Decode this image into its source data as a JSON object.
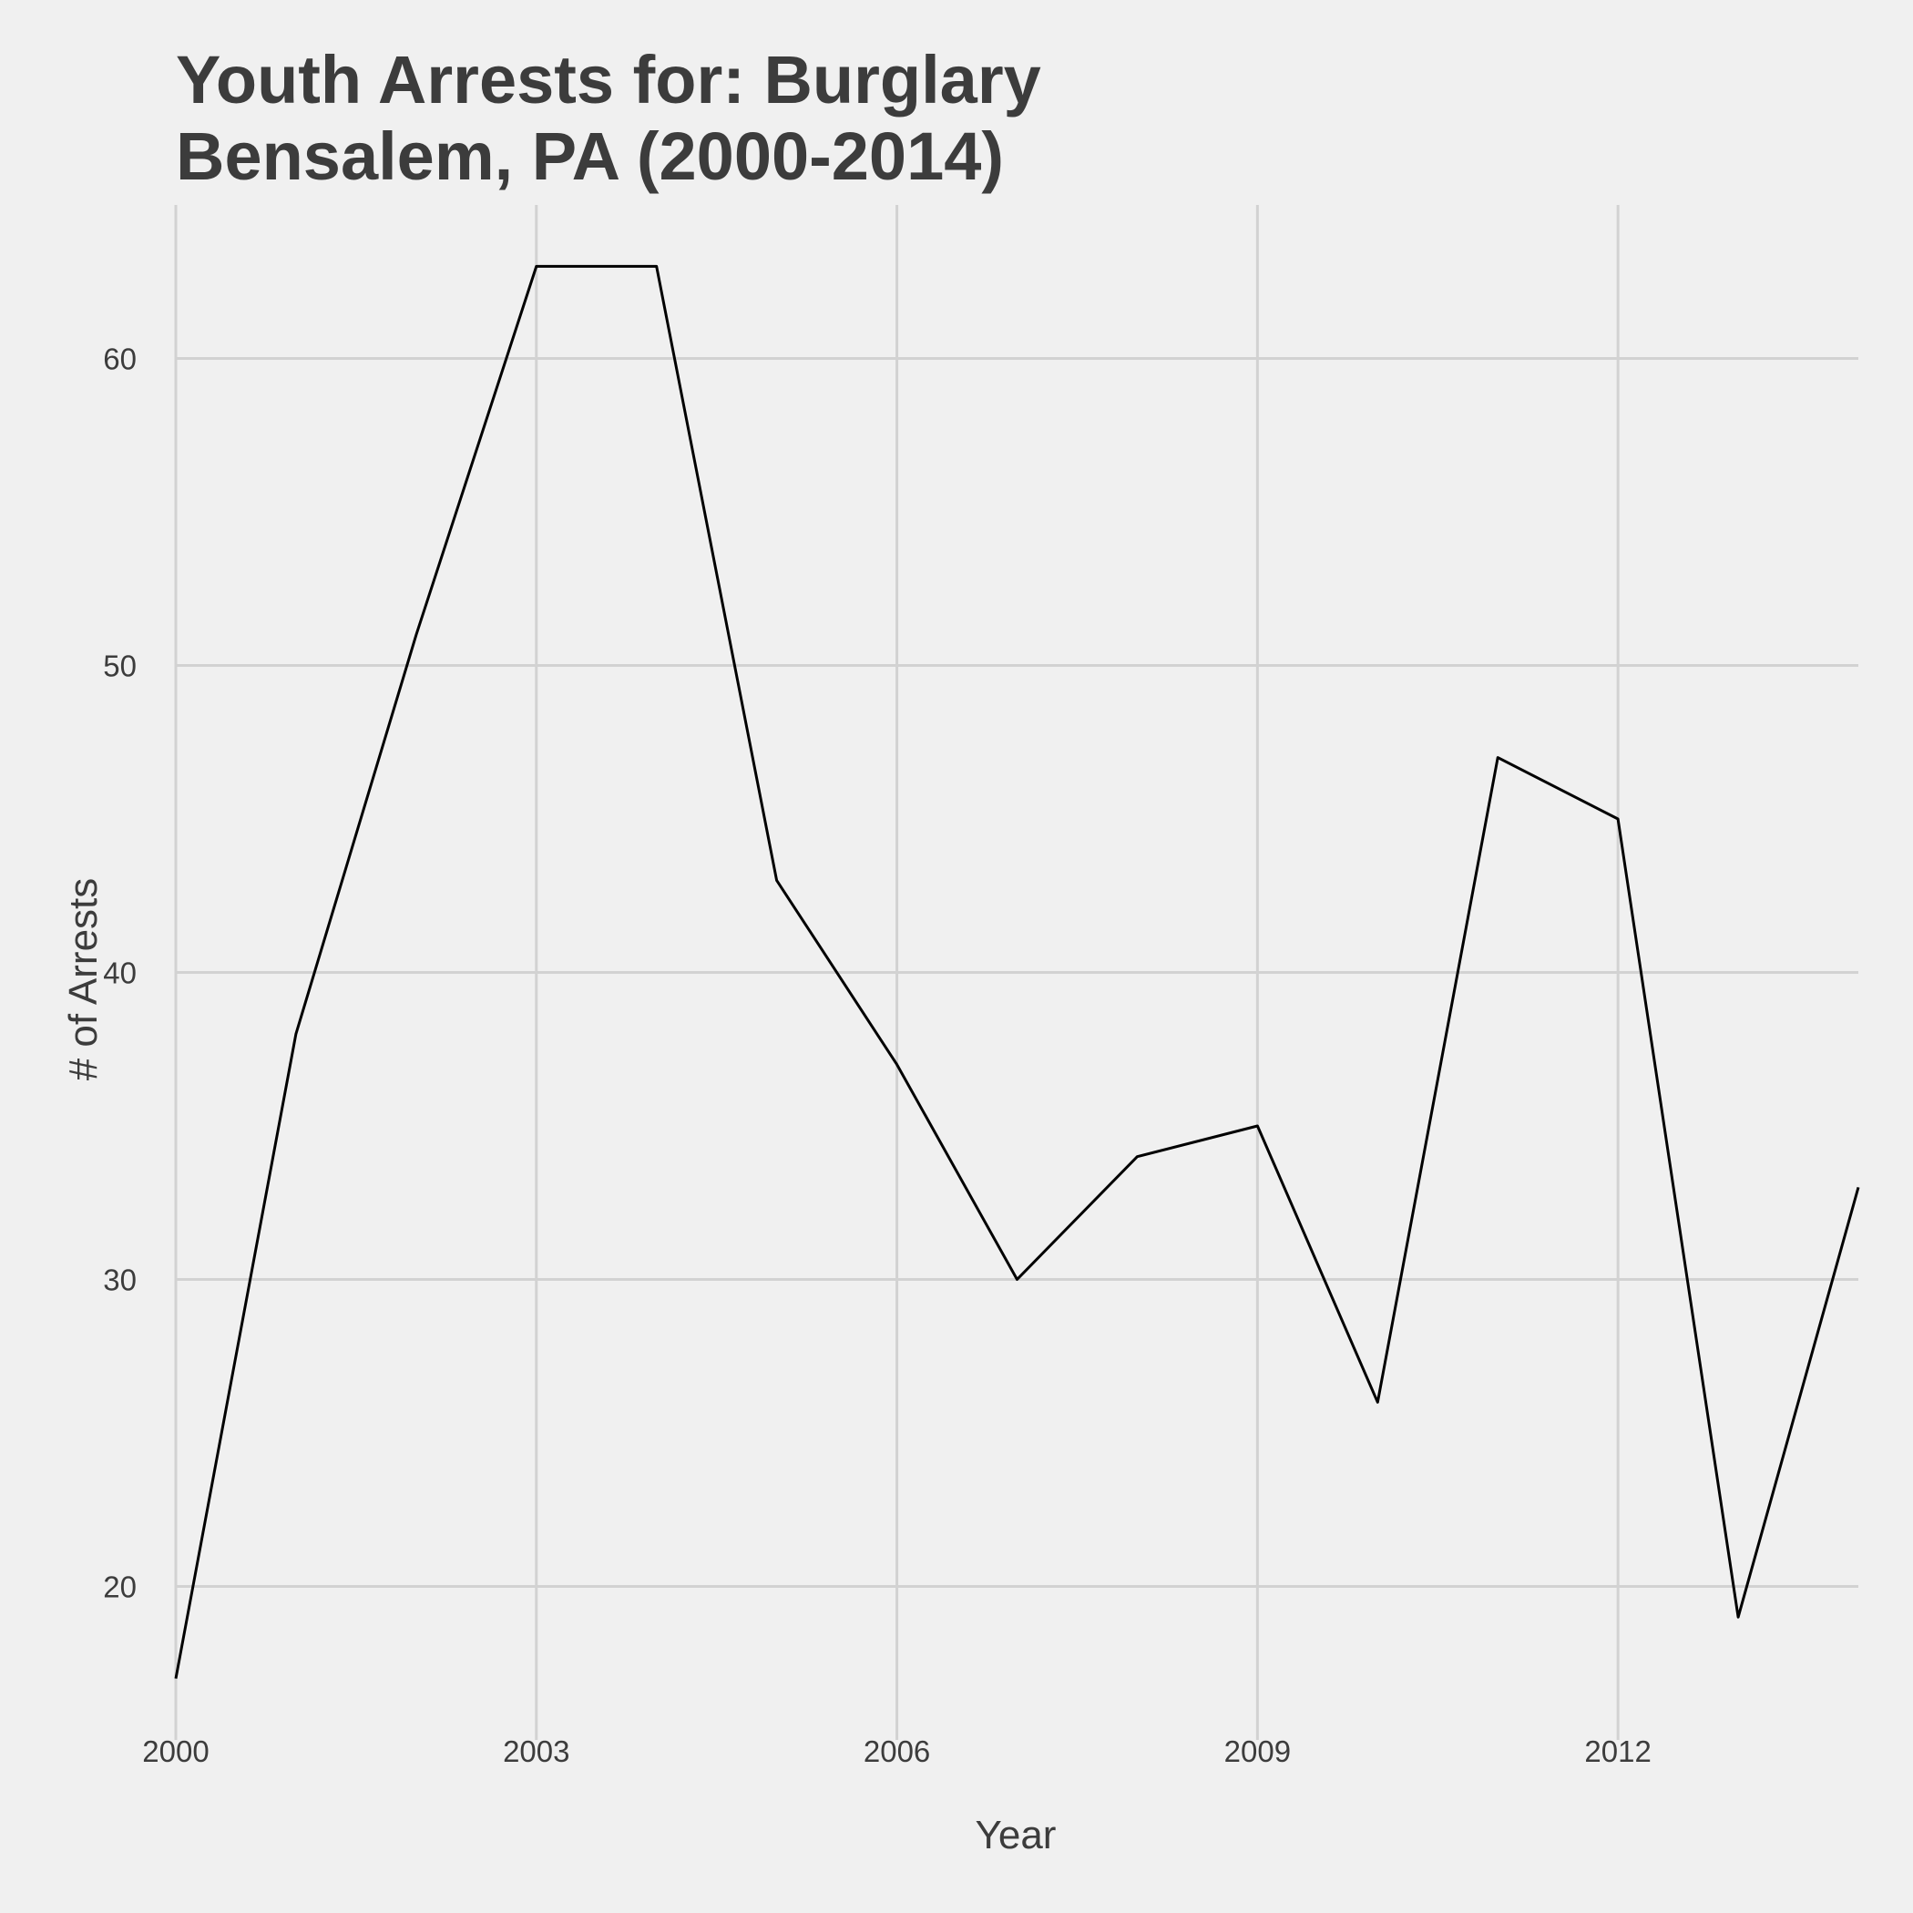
{
  "chart_data": {
    "type": "line",
    "title": [
      "Youth Arrests for: Burglary",
      "Bensalem, PA (2000-2014)"
    ],
    "xlabel": "Year",
    "ylabel": "# of Arrests",
    "x": [
      2000,
      2001,
      2002,
      2003,
      2004,
      2005,
      2006,
      2007,
      2008,
      2009,
      2010,
      2011,
      2012,
      2013,
      2014
    ],
    "series": [
      {
        "values": [
          17,
          38,
          51,
          63,
          63,
          43,
          37,
          30,
          34,
          35,
          26,
          47,
          45,
          19,
          33
        ]
      }
    ],
    "xlim": [
      2000,
      2014
    ],
    "ylim": [
      15,
      65
    ],
    "xticks": [
      2000,
      2003,
      2006,
      2009,
      2012
    ],
    "yticks": [
      20,
      30,
      40,
      50,
      60
    ],
    "grid": true,
    "legend": "none",
    "colors": {
      "background": "#f0f0f0",
      "grid": "#d2d2d2",
      "line": "#000000",
      "text": "#3c3c3c"
    }
  }
}
